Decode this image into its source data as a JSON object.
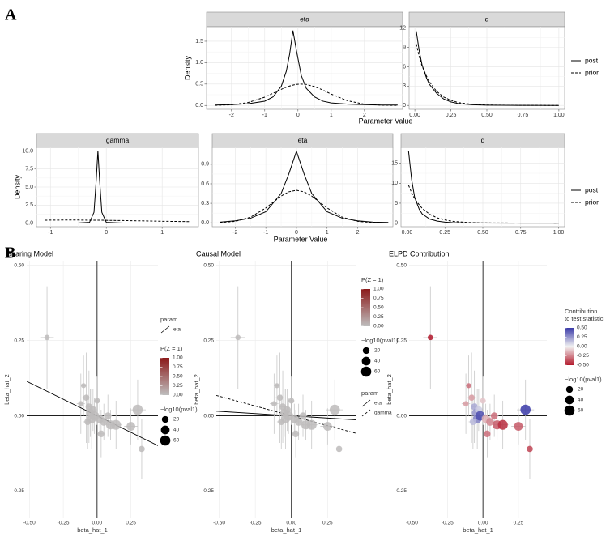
{
  "panel_labels": [
    "A",
    "B"
  ],
  "chart_data": [
    {
      "type": "density",
      "title": "eta",
      "xlabel": "Parameter Value",
      "ylabel": "Density",
      "xlim": [
        -2.75,
        3.15
      ],
      "ylim": [
        -0.09,
        1.84
      ],
      "xticks": [
        -2,
        -1,
        0,
        1,
        2
      ],
      "yticks": [
        {
          "value": 0,
          "label": "0.0"
        },
        {
          "value": 0.5,
          "label": "0.5"
        },
        {
          "value": 1,
          "label": "1.0"
        },
        {
          "value": 1.5,
          "label": "1.5"
        }
      ],
      "grid": true,
      "x": [
        -2.5,
        -2,
        -1.5,
        -1,
        -0.75,
        -0.5,
        -0.35,
        -0.25,
        -0.15,
        -0.05,
        0.1,
        0.25,
        0.5,
        0.75,
        1,
        1.5,
        2,
        2.5,
        3
      ],
      "series": [
        {
          "dash": "solid",
          "color": "#000000",
          "values": [
            0.01,
            0.02,
            0.04,
            0.1,
            0.2,
            0.45,
            0.8,
            1.2,
            1.75,
            1.3,
            0.7,
            0.4,
            0.2,
            0.1,
            0.06,
            0.03,
            0.02,
            0.01,
            0.01
          ]
        },
        {
          "dash": "dashed",
          "color": "#000000",
          "values": [
            0.003,
            0.016,
            0.068,
            0.194,
            0.284,
            0.377,
            0.427,
            0.454,
            0.476,
            0.491,
            0.5,
            0.491,
            0.441,
            0.36,
            0.265,
            0.108,
            0.03,
            0.006,
            0.001
          ]
        }
      ]
    },
    {
      "type": "density",
      "title": "q",
      "legend": true,
      "xlim": [
        -0.04,
        1.04
      ],
      "ylim": [
        -0.6,
        12.2
      ],
      "xticks": [
        {
          "value": 0,
          "label": "0.00"
        },
        {
          "value": 0.25,
          "label": "0.25"
        },
        {
          "value": 0.5,
          "label": "0.50"
        },
        {
          "value": 0.75,
          "label": "0.75"
        },
        {
          "value": 1,
          "label": "1.00"
        }
      ],
      "yticks": [
        0,
        3,
        6,
        9,
        12
      ],
      "grid": true,
      "x": [
        0.01,
        0.03,
        0.05,
        0.08,
        0.1,
        0.15,
        0.2,
        0.25,
        0.3,
        0.4,
        0.5,
        0.75,
        1
      ],
      "series": [
        {
          "name": "post",
          "dash": "solid",
          "color": "#000000",
          "values": [
            11.5,
            8.5,
            6.3,
            4.3,
            3.3,
            1.9,
            1.0,
            0.55,
            0.3,
            0.1,
            0.04,
            0.01,
            0
          ]
        },
        {
          "name": "prior",
          "dash": "dashed",
          "color": "#000000",
          "values": [
            9.5,
            7.6,
            6.1,
            4.6,
            3.7,
            2.2,
            1.3,
            0.8,
            0.45,
            0.16,
            0.06,
            0.01,
            0
          ]
        }
      ]
    },
    {
      "type": "density",
      "title": "gamma",
      "xlabel": "Parameter Value",
      "ylabel": "Density",
      "xlim": [
        -1.25,
        1.65
      ],
      "ylim": [
        -0.5,
        10.5
      ],
      "xticks": [
        -1,
        0,
        1
      ],
      "yticks": [
        {
          "value": 0,
          "label": "0.0"
        },
        {
          "value": 2.5,
          "label": "2.5"
        },
        {
          "value": 5,
          "label": "5.0"
        },
        {
          "value": 7.5,
          "label": "7.5"
        },
        {
          "value": 10,
          "label": "10.0"
        }
      ],
      "grid": true,
      "x": [
        -1.1,
        -0.8,
        -0.5,
        -0.3,
        -0.22,
        -0.18,
        -0.15,
        -0.12,
        -0.08,
        0,
        0.3,
        0.7,
        1,
        1.5
      ],
      "series": [
        {
          "dash": "solid",
          "color": "#000000",
          "values": [
            0,
            0,
            0.02,
            0.1,
            1.5,
            6,
            10,
            6,
            1.5,
            0.1,
            0,
            0,
            0,
            0
          ]
        },
        {
          "dash": "dashed",
          "color": "#000000",
          "values": [
            0.4,
            0.42,
            0.42,
            0.4,
            0.4,
            0.4,
            0.4,
            0.4,
            0.4,
            0.38,
            0.35,
            0.3,
            0.25,
            0.2
          ]
        }
      ]
    },
    {
      "type": "density",
      "title": "eta",
      "xlim": [
        -2.75,
        3.15
      ],
      "ylim": [
        -0.06,
        1.16
      ],
      "xticks": [
        -2,
        -1,
        0,
        1,
        2
      ],
      "yticks": [
        {
          "value": 0,
          "label": "0.0"
        },
        {
          "value": 0.3,
          "label": "0.3"
        },
        {
          "value": 0.6,
          "label": "0.6"
        },
        {
          "value": 0.9,
          "label": "0.9"
        }
      ],
      "grid": true,
      "x": [
        -2.5,
        -2,
        -1.5,
        -1,
        -0.5,
        -0.25,
        0,
        0.25,
        0.5,
        1,
        1.5,
        2,
        2.5,
        3
      ],
      "series": [
        {
          "dash": "solid",
          "color": "#000000",
          "values": [
            0.01,
            0.03,
            0.07,
            0.17,
            0.45,
            0.75,
            1.1,
            0.75,
            0.45,
            0.17,
            0.07,
            0.03,
            0.01,
            0.005
          ]
        },
        {
          "dash": "dashed",
          "color": "#000000",
          "values": [
            0.004,
            0.022,
            0.086,
            0.229,
            0.411,
            0.476,
            0.5,
            0.476,
            0.411,
            0.229,
            0.086,
            0.022,
            0.004,
            0.0005
          ]
        }
      ]
    },
    {
      "type": "density",
      "title": "q",
      "legend": true,
      "xlim": [
        -0.04,
        1.04
      ],
      "ylim": [
        -0.9,
        19
      ],
      "xticks": [
        {
          "value": 0,
          "label": "0.00"
        },
        {
          "value": 0.25,
          "label": "0.25"
        },
        {
          "value": 0.5,
          "label": "0.50"
        },
        {
          "value": 0.75,
          "label": "0.75"
        },
        {
          "value": 1,
          "label": "1.00"
        }
      ],
      "yticks": [
        0,
        5,
        10,
        15
      ],
      "grid": true,
      "x": [
        0.01,
        0.03,
        0.05,
        0.08,
        0.1,
        0.15,
        0.2,
        0.25,
        0.3,
        0.4,
        0.5,
        0.75,
        1
      ],
      "series": [
        {
          "name": "post",
          "dash": "solid",
          "color": "#000000",
          "values": [
            18,
            11,
            6.5,
            3.5,
            2.3,
            1,
            0.5,
            0.25,
            0.12,
            0.04,
            0.01,
            0,
            0
          ]
        },
        {
          "name": "prior",
          "dash": "dashed",
          "color": "#000000",
          "values": [
            9.5,
            7.6,
            6.1,
            4.6,
            3.7,
            2.2,
            1.3,
            0.8,
            0.45,
            0.16,
            0.06,
            0.01,
            0
          ]
        }
      ]
    },
    {
      "type": "scatter",
      "title": "Sharing Model",
      "xlabel": "beta_hat_1",
      "ylabel": "beta_hat_2",
      "xlim": [
        -0.52,
        0.45
      ],
      "ylim": [
        -0.34,
        0.515
      ],
      "grid": true,
      "xticks": [
        {
          "value": -0.5,
          "label": "-0.50"
        },
        {
          "value": -0.25,
          "label": "-0.25"
        },
        {
          "value": 0,
          "label": "0.00"
        },
        {
          "value": 0.25,
          "label": "0.25"
        }
      ],
      "yticks": [
        {
          "value": -0.25,
          "label": "-0.25"
        },
        {
          "value": 0,
          "label": "0.00"
        },
        {
          "value": 0.25,
          "label": "0.25"
        },
        {
          "value": 0.5,
          "label": "0.50"
        }
      ],
      "x": [
        -0.37,
        -0.1,
        -0.08,
        -0.06,
        -0.05,
        -0.04,
        -0.03,
        -0.02,
        -0.07,
        0.0,
        0.02,
        0.05,
        0.08,
        0.1,
        0.14,
        0.25,
        0.3,
        0.33,
        -0.12,
        0.03
      ],
      "values": [
        0.26,
        0.1,
        0.06,
        0.03,
        0.01,
        -0.01,
        0.02,
        0.0,
        -0.02,
        0.05,
        -0.01,
        -0.02,
        0.0,
        -0.03,
        -0.03,
        -0.035,
        0.02,
        -0.11,
        0.04,
        -0.06
      ],
      "xerr": [
        0.05,
        0.02,
        0.03,
        0.02,
        0.02,
        0.03,
        0.02,
        0.02,
        0.03,
        0.02,
        0.02,
        0.02,
        0.03,
        0.03,
        0.04,
        0.05,
        0.06,
        0.04,
        0.03,
        0.02
      ],
      "yerr": [
        0.17,
        0.1,
        0.15,
        0.12,
        0.08,
        0.1,
        0.07,
        0.06,
        0.09,
        0.08,
        0.05,
        0.06,
        0.07,
        0.05,
        0.08,
        0.06,
        0.1,
        0.1,
        0.1,
        0.08
      ],
      "sizes": [
        10,
        8,
        15,
        20,
        30,
        40,
        25,
        50,
        18,
        12,
        35,
        30,
        22,
        45,
        55,
        40,
        60,
        15,
        10,
        20
      ],
      "color_values": [
        0.02,
        0.02,
        0.02,
        0.02,
        0.02,
        0.02,
        0.02,
        0.02,
        0.02,
        0.02,
        0.02,
        0.02,
        0.02,
        0.02,
        0.02,
        0.02,
        0.02,
        0.02,
        0.02,
        0.02
      ],
      "lines_title": "param",
      "lines": [
        {
          "name": "eta",
          "dash": "solid",
          "slope": -0.22,
          "intercept": 0.0
        }
      ],
      "colorbar": {
        "title": [
          "P(Z = 1)"
        ],
        "colors": [
          "#bebebe",
          "#8b1a1a"
        ],
        "lim": [
          0,
          1
        ],
        "ticks": [
          {
            "value": 0,
            "label": "0.00"
          },
          {
            "value": 0.25,
            "label": "0.25"
          },
          {
            "value": 0.5,
            "label": "0.50"
          },
          {
            "value": 0.75,
            "label": "0.75"
          },
          {
            "value": 1,
            "label": "1.00"
          }
        ]
      },
      "size_title": "−log10(pval1)",
      "size_ticks": [
        20,
        40,
        60
      ]
    },
    {
      "type": "scatter",
      "title": "Causal Model",
      "xlabel": "beta_hat_1",
      "ylabel": "beta_hat_2",
      "xlim": [
        -0.52,
        0.45
      ],
      "ylim": [
        -0.34,
        0.515
      ],
      "grid": true,
      "xticks": [
        {
          "value": -0.5,
          "label": "-0.50"
        },
        {
          "value": -0.25,
          "label": "-0.25"
        },
        {
          "value": 0,
          "label": "0.00"
        },
        {
          "value": 0.25,
          "label": "0.25"
        }
      ],
      "yticks": [
        {
          "value": -0.25,
          "label": "-0.25"
        },
        {
          "value": 0,
          "label": "0.00"
        },
        {
          "value": 0.25,
          "label": "0.25"
        },
        {
          "value": 0.5,
          "label": "0.50"
        }
      ],
      "x": [
        -0.37,
        -0.1,
        -0.08,
        -0.06,
        -0.05,
        -0.04,
        -0.03,
        -0.02,
        -0.07,
        0.0,
        0.02,
        0.05,
        0.08,
        0.1,
        0.14,
        0.25,
        0.3,
        0.33,
        -0.12,
        0.03
      ],
      "values": [
        0.26,
        0.1,
        0.06,
        0.03,
        0.01,
        -0.01,
        0.02,
        0.0,
        -0.02,
        0.05,
        -0.01,
        -0.02,
        0.0,
        -0.03,
        -0.03,
        -0.035,
        0.02,
        -0.11,
        0.04,
        -0.06
      ],
      "xerr": [
        0.05,
        0.02,
        0.03,
        0.02,
        0.02,
        0.03,
        0.02,
        0.02,
        0.03,
        0.02,
        0.02,
        0.02,
        0.03,
        0.03,
        0.04,
        0.05,
        0.06,
        0.04,
        0.03,
        0.02
      ],
      "yerr": [
        0.17,
        0.1,
        0.15,
        0.12,
        0.08,
        0.1,
        0.07,
        0.06,
        0.09,
        0.08,
        0.05,
        0.06,
        0.07,
        0.05,
        0.08,
        0.06,
        0.1,
        0.1,
        0.1,
        0.08
      ],
      "sizes": [
        10,
        8,
        15,
        20,
        30,
        40,
        25,
        50,
        18,
        12,
        35,
        30,
        22,
        45,
        55,
        40,
        60,
        15,
        10,
        20
      ],
      "color_values": [
        0.02,
        0.02,
        0.02,
        0.02,
        0.02,
        0.02,
        0.02,
        0.02,
        0.02,
        0.02,
        0.02,
        0.02,
        0.02,
        0.02,
        0.02,
        0.02,
        0.02,
        0.02,
        0.02,
        0.02
      ],
      "colorbar": {
        "title": [
          "P(Z = 1)"
        ],
        "colors": [
          "#bebebe",
          "#8b1a1a"
        ],
        "lim": [
          0,
          1
        ],
        "ticks": [
          {
            "value": 0,
            "label": "0.00"
          },
          {
            "value": 0.25,
            "label": "0.25"
          },
          {
            "value": 0.5,
            "label": "0.50"
          },
          {
            "value": 0.75,
            "label": "0.75"
          },
          {
            "value": 1,
            "label": "1.00"
          }
        ]
      },
      "size_title": "−log10(pval1)",
      "size_ticks": [
        20,
        40,
        60
      ],
      "lines_title": "param",
      "lines": [
        {
          "name": "eta",
          "dash": "solid",
          "slope": -0.03,
          "intercept": 0.0
        },
        {
          "name": "gamma",
          "dash": "dashed",
          "slope": -0.13,
          "intercept": 0.0
        }
      ]
    },
    {
      "type": "scatter",
      "title": "ELPD Contribution",
      "xlabel": "beta_hat_1",
      "ylabel": "beta_hat_2",
      "xlim": [
        -0.52,
        0.45
      ],
      "ylim": [
        -0.34,
        0.515
      ],
      "grid": true,
      "xticks": [
        {
          "value": -0.5,
          "label": "-0.50"
        },
        {
          "value": -0.25,
          "label": "-0.25"
        },
        {
          "value": 0,
          "label": "0.00"
        },
        {
          "value": 0.25,
          "label": "0.25"
        }
      ],
      "yticks": [
        {
          "value": -0.25,
          "label": "-0.25"
        },
        {
          "value": 0,
          "label": "0.00"
        },
        {
          "value": 0.25,
          "label": "0.25"
        },
        {
          "value": 0.5,
          "label": "0.50"
        }
      ],
      "x": [
        -0.37,
        -0.1,
        -0.08,
        -0.06,
        -0.05,
        -0.04,
        -0.03,
        -0.02,
        -0.07,
        0.0,
        0.02,
        0.05,
        0.08,
        0.1,
        0.14,
        0.25,
        0.3,
        0.33,
        -0.12,
        0.03
      ],
      "values": [
        0.26,
        0.1,
        0.06,
        0.03,
        0.01,
        -0.01,
        0.02,
        0.0,
        -0.02,
        0.05,
        -0.01,
        -0.02,
        0.0,
        -0.03,
        -0.03,
        -0.035,
        0.02,
        -0.11,
        0.04,
        -0.06
      ],
      "xerr": [
        0.05,
        0.02,
        0.03,
        0.02,
        0.02,
        0.03,
        0.02,
        0.02,
        0.03,
        0.02,
        0.02,
        0.02,
        0.03,
        0.03,
        0.04,
        0.05,
        0.06,
        0.04,
        0.03,
        0.02
      ],
      "yerr": [
        0.17,
        0.1,
        0.15,
        0.12,
        0.08,
        0.1,
        0.07,
        0.06,
        0.09,
        0.08,
        0.05,
        0.06,
        0.07,
        0.05,
        0.08,
        0.06,
        0.1,
        0.1,
        0.1,
        0.08
      ],
      "sizes": [
        10,
        8,
        15,
        20,
        30,
        40,
        25,
        50,
        18,
        12,
        35,
        30,
        22,
        45,
        55,
        40,
        60,
        15,
        10,
        20
      ],
      "color_values": [
        -0.5,
        -0.3,
        -0.2,
        0.2,
        0.25,
        0.3,
        0.1,
        0.45,
        0.15,
        -0.1,
        -0.15,
        -0.25,
        -0.3,
        -0.35,
        -0.45,
        -0.35,
        0.5,
        -0.4,
        -0.2,
        -0.3
      ],
      "colorbar": {
        "title": [
          "Contribution",
          "to test statistic"
        ],
        "colors": [
          "#b2182b",
          "#f2f2f2",
          "#3a3aa8"
        ],
        "lim": [
          -0.5,
          0.5
        ],
        "ticks": [
          {
            "value": -0.5,
            "label": "-0.50"
          },
          {
            "value": -0.25,
            "label": "-0.25"
          },
          {
            "value": 0,
            "label": "0.00"
          },
          {
            "value": 0.25,
            "label": "0.25"
          },
          {
            "value": 0.5,
            "label": "0.50"
          }
        ]
      },
      "size_title": "−log10(pval1)",
      "size_ticks": [
        20,
        40,
        60
      ]
    }
  ]
}
